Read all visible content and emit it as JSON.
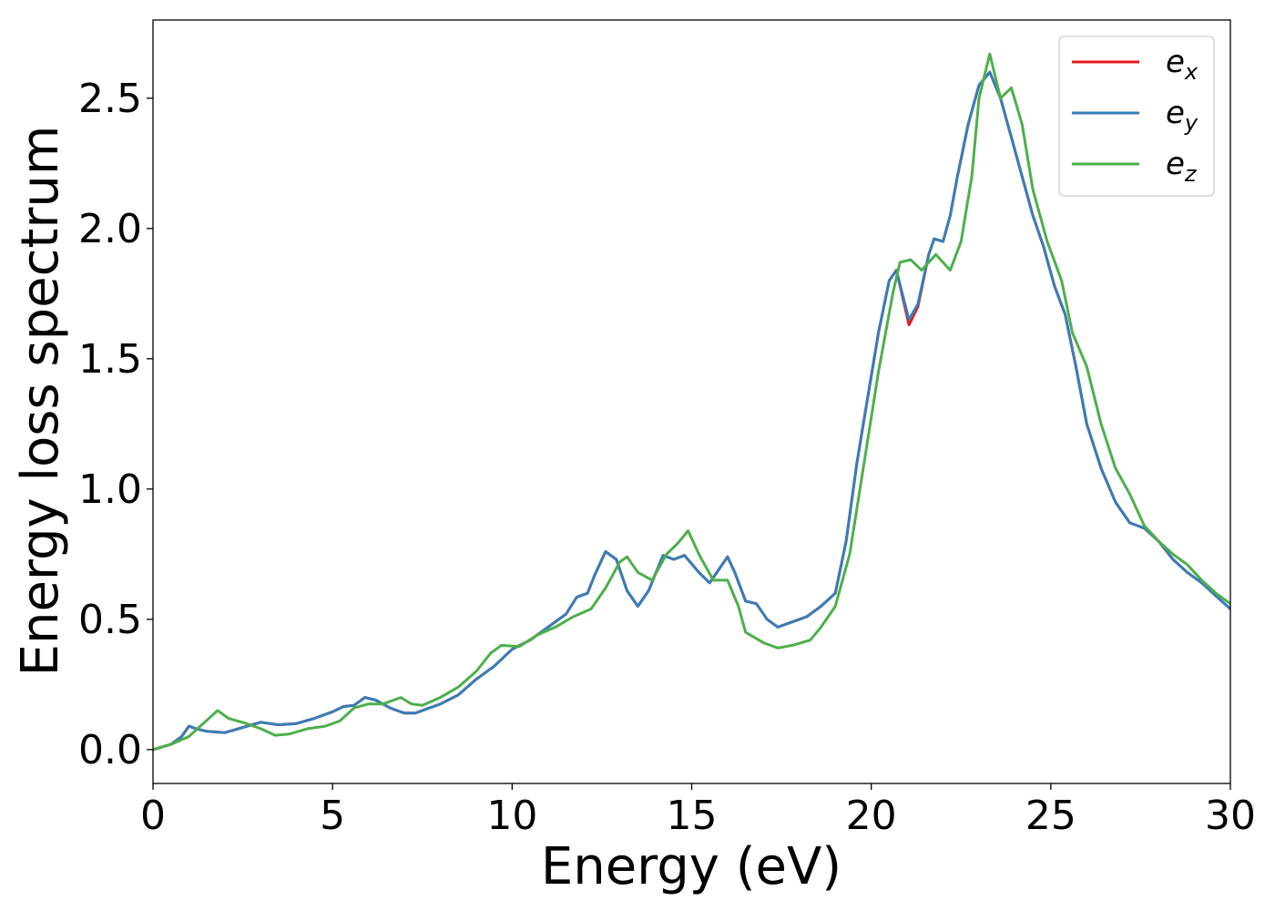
{
  "chart_data": {
    "type": "line",
    "title": "",
    "xlabel": "Energy (eV)",
    "ylabel": "Energy loss spectrum",
    "xlim": [
      0,
      30
    ],
    "ylim": [
      -0.13,
      2.8
    ],
    "xticks": [
      0,
      5,
      10,
      15,
      20,
      25,
      30
    ],
    "xtick_labels": [
      "0",
      "5",
      "10",
      "15",
      "20",
      "25",
      "30"
    ],
    "yticks": [
      0.0,
      0.5,
      1.0,
      1.5,
      2.0,
      2.5
    ],
    "ytick_labels": [
      "0.0",
      "0.5",
      "1.0",
      "1.5",
      "2.0",
      "2.5"
    ],
    "grid": false,
    "legend_position": "top-right",
    "series": [
      {
        "name": "e_x",
        "base": "e",
        "sub": "x",
        "color": "#e41a1c",
        "points": [
          [
            0,
            0
          ],
          [
            0.5,
            0.02
          ],
          [
            0.8,
            0.05
          ],
          [
            1.0,
            0.09
          ],
          [
            1.2,
            0.08
          ],
          [
            1.5,
            0.07
          ],
          [
            2.0,
            0.065
          ],
          [
            2.5,
            0.085
          ],
          [
            3.0,
            0.105
          ],
          [
            3.5,
            0.095
          ],
          [
            4.0,
            0.1
          ],
          [
            4.5,
            0.12
          ],
          [
            5.0,
            0.145
          ],
          [
            5.3,
            0.165
          ],
          [
            5.6,
            0.17
          ],
          [
            5.9,
            0.2
          ],
          [
            6.2,
            0.19
          ],
          [
            6.6,
            0.16
          ],
          [
            7.0,
            0.14
          ],
          [
            7.3,
            0.14
          ],
          [
            7.6,
            0.155
          ],
          [
            8.0,
            0.175
          ],
          [
            8.5,
            0.21
          ],
          [
            9.0,
            0.27
          ],
          [
            9.5,
            0.32
          ],
          [
            10.0,
            0.385
          ],
          [
            10.5,
            0.42
          ],
          [
            11.0,
            0.47
          ],
          [
            11.5,
            0.52
          ],
          [
            11.8,
            0.585
          ],
          [
            12.1,
            0.6
          ],
          [
            12.3,
            0.67
          ],
          [
            12.6,
            0.76
          ],
          [
            12.9,
            0.73
          ],
          [
            13.2,
            0.61
          ],
          [
            13.5,
            0.55
          ],
          [
            13.8,
            0.61
          ],
          [
            14.2,
            0.745
          ],
          [
            14.5,
            0.73
          ],
          [
            14.8,
            0.745
          ],
          [
            15.2,
            0.68
          ],
          [
            15.5,
            0.64
          ],
          [
            15.8,
            0.7
          ],
          [
            16.0,
            0.74
          ],
          [
            16.2,
            0.68
          ],
          [
            16.5,
            0.57
          ],
          [
            16.8,
            0.56
          ],
          [
            17.1,
            0.5
          ],
          [
            17.4,
            0.47
          ],
          [
            17.8,
            0.49
          ],
          [
            18.2,
            0.51
          ],
          [
            18.6,
            0.55
          ],
          [
            19.0,
            0.6
          ],
          [
            19.3,
            0.8
          ],
          [
            19.6,
            1.1
          ],
          [
            19.9,
            1.35
          ],
          [
            20.2,
            1.6
          ],
          [
            20.5,
            1.8
          ],
          [
            20.7,
            1.84
          ],
          [
            20.9,
            1.72
          ],
          [
            21.05,
            1.63
          ],
          [
            21.3,
            1.7
          ],
          [
            21.6,
            1.9
          ],
          [
            21.75,
            1.96
          ],
          [
            22.0,
            1.95
          ],
          [
            22.2,
            2.05
          ],
          [
            22.4,
            2.2
          ],
          [
            22.7,
            2.4
          ],
          [
            23.0,
            2.55
          ],
          [
            23.3,
            2.6
          ],
          [
            23.6,
            2.5
          ],
          [
            23.9,
            2.35
          ],
          [
            24.2,
            2.2
          ],
          [
            24.5,
            2.05
          ],
          [
            24.8,
            1.93
          ],
          [
            25.1,
            1.78
          ],
          [
            25.4,
            1.67
          ],
          [
            25.7,
            1.47
          ],
          [
            26.0,
            1.25
          ],
          [
            26.4,
            1.08
          ],
          [
            26.8,
            0.95
          ],
          [
            27.2,
            0.87
          ],
          [
            27.6,
            0.85
          ],
          [
            28.0,
            0.8
          ],
          [
            28.4,
            0.73
          ],
          [
            28.8,
            0.68
          ],
          [
            29.2,
            0.64
          ],
          [
            29.6,
            0.59
          ],
          [
            30.0,
            0.54
          ]
        ]
      },
      {
        "name": "e_y",
        "base": "e",
        "sub": "y",
        "color": "#377eb8",
        "points": [
          [
            0,
            0
          ],
          [
            0.5,
            0.02
          ],
          [
            0.8,
            0.05
          ],
          [
            1.0,
            0.09
          ],
          [
            1.2,
            0.08
          ],
          [
            1.5,
            0.07
          ],
          [
            2.0,
            0.065
          ],
          [
            2.5,
            0.085
          ],
          [
            3.0,
            0.105
          ],
          [
            3.5,
            0.095
          ],
          [
            4.0,
            0.1
          ],
          [
            4.5,
            0.12
          ],
          [
            5.0,
            0.145
          ],
          [
            5.3,
            0.165
          ],
          [
            5.6,
            0.17
          ],
          [
            5.9,
            0.2
          ],
          [
            6.2,
            0.19
          ],
          [
            6.6,
            0.16
          ],
          [
            7.0,
            0.14
          ],
          [
            7.3,
            0.14
          ],
          [
            7.6,
            0.155
          ],
          [
            8.0,
            0.175
          ],
          [
            8.5,
            0.21
          ],
          [
            9.0,
            0.27
          ],
          [
            9.5,
            0.32
          ],
          [
            10.0,
            0.385
          ],
          [
            10.5,
            0.42
          ],
          [
            11.0,
            0.47
          ],
          [
            11.5,
            0.52
          ],
          [
            11.8,
            0.585
          ],
          [
            12.1,
            0.6
          ],
          [
            12.3,
            0.67
          ],
          [
            12.6,
            0.76
          ],
          [
            12.9,
            0.73
          ],
          [
            13.2,
            0.61
          ],
          [
            13.5,
            0.55
          ],
          [
            13.8,
            0.61
          ],
          [
            14.2,
            0.745
          ],
          [
            14.5,
            0.73
          ],
          [
            14.8,
            0.745
          ],
          [
            15.2,
            0.68
          ],
          [
            15.5,
            0.64
          ],
          [
            15.8,
            0.7
          ],
          [
            16.0,
            0.74
          ],
          [
            16.2,
            0.68
          ],
          [
            16.5,
            0.57
          ],
          [
            16.8,
            0.56
          ],
          [
            17.1,
            0.5
          ],
          [
            17.4,
            0.47
          ],
          [
            17.8,
            0.49
          ],
          [
            18.2,
            0.51
          ],
          [
            18.6,
            0.55
          ],
          [
            19.0,
            0.6
          ],
          [
            19.3,
            0.8
          ],
          [
            19.6,
            1.1
          ],
          [
            19.9,
            1.35
          ],
          [
            20.2,
            1.6
          ],
          [
            20.5,
            1.8
          ],
          [
            20.7,
            1.84
          ],
          [
            20.9,
            1.73
          ],
          [
            21.05,
            1.65
          ],
          [
            21.3,
            1.71
          ],
          [
            21.6,
            1.9
          ],
          [
            21.75,
            1.96
          ],
          [
            22.0,
            1.95
          ],
          [
            22.2,
            2.05
          ],
          [
            22.4,
            2.2
          ],
          [
            22.7,
            2.4
          ],
          [
            23.0,
            2.55
          ],
          [
            23.3,
            2.6
          ],
          [
            23.6,
            2.5
          ],
          [
            23.9,
            2.35
          ],
          [
            24.2,
            2.2
          ],
          [
            24.5,
            2.05
          ],
          [
            24.8,
            1.93
          ],
          [
            25.1,
            1.78
          ],
          [
            25.4,
            1.67
          ],
          [
            25.7,
            1.47
          ],
          [
            26.0,
            1.25
          ],
          [
            26.4,
            1.08
          ],
          [
            26.8,
            0.95
          ],
          [
            27.2,
            0.87
          ],
          [
            27.6,
            0.85
          ],
          [
            28.0,
            0.8
          ],
          [
            28.4,
            0.73
          ],
          [
            28.8,
            0.68
          ],
          [
            29.2,
            0.64
          ],
          [
            29.6,
            0.59
          ],
          [
            30.0,
            0.54
          ]
        ]
      },
      {
        "name": "e_z",
        "base": "e",
        "sub": "z",
        "color": "#4daf4a",
        "points": [
          [
            0,
            0
          ],
          [
            0.5,
            0.02
          ],
          [
            1.0,
            0.05
          ],
          [
            1.4,
            0.1
          ],
          [
            1.8,
            0.15
          ],
          [
            2.1,
            0.12
          ],
          [
            2.6,
            0.1
          ],
          [
            3.0,
            0.08
          ],
          [
            3.4,
            0.055
          ],
          [
            3.8,
            0.06
          ],
          [
            4.3,
            0.08
          ],
          [
            4.8,
            0.09
          ],
          [
            5.2,
            0.11
          ],
          [
            5.6,
            0.16
          ],
          [
            6.0,
            0.175
          ],
          [
            6.4,
            0.175
          ],
          [
            6.9,
            0.2
          ],
          [
            7.2,
            0.175
          ],
          [
            7.5,
            0.17
          ],
          [
            8.0,
            0.2
          ],
          [
            8.5,
            0.24
          ],
          [
            9.0,
            0.3
          ],
          [
            9.4,
            0.37
          ],
          [
            9.7,
            0.4
          ],
          [
            10.2,
            0.395
          ],
          [
            10.7,
            0.44
          ],
          [
            11.2,
            0.47
          ],
          [
            11.7,
            0.51
          ],
          [
            12.2,
            0.54
          ],
          [
            12.6,
            0.62
          ],
          [
            13.0,
            0.72
          ],
          [
            13.2,
            0.74
          ],
          [
            13.5,
            0.68
          ],
          [
            13.9,
            0.65
          ],
          [
            14.3,
            0.75
          ],
          [
            14.6,
            0.79
          ],
          [
            14.9,
            0.84
          ],
          [
            15.2,
            0.75
          ],
          [
            15.6,
            0.65
          ],
          [
            16.0,
            0.65
          ],
          [
            16.3,
            0.55
          ],
          [
            16.5,
            0.45
          ],
          [
            17.0,
            0.41
          ],
          [
            17.4,
            0.39
          ],
          [
            17.8,
            0.4
          ],
          [
            18.3,
            0.42
          ],
          [
            18.6,
            0.47
          ],
          [
            19.0,
            0.55
          ],
          [
            19.4,
            0.75
          ],
          [
            19.8,
            1.1
          ],
          [
            20.2,
            1.45
          ],
          [
            20.6,
            1.75
          ],
          [
            20.8,
            1.87
          ],
          [
            21.1,
            1.88
          ],
          [
            21.4,
            1.84
          ],
          [
            21.8,
            1.9
          ],
          [
            22.2,
            1.84
          ],
          [
            22.5,
            1.95
          ],
          [
            22.8,
            2.2
          ],
          [
            23.0,
            2.5
          ],
          [
            23.3,
            2.67
          ],
          [
            23.6,
            2.5
          ],
          [
            23.9,
            2.54
          ],
          [
            24.2,
            2.4
          ],
          [
            24.5,
            2.15
          ],
          [
            24.9,
            1.95
          ],
          [
            25.3,
            1.8
          ],
          [
            25.6,
            1.6
          ],
          [
            26.0,
            1.47
          ],
          [
            26.4,
            1.25
          ],
          [
            26.8,
            1.08
          ],
          [
            27.2,
            0.98
          ],
          [
            27.6,
            0.86
          ],
          [
            28.0,
            0.8
          ],
          [
            28.4,
            0.75
          ],
          [
            28.8,
            0.71
          ],
          [
            29.2,
            0.65
          ],
          [
            29.6,
            0.6
          ],
          [
            30.0,
            0.56
          ]
        ]
      }
    ]
  }
}
